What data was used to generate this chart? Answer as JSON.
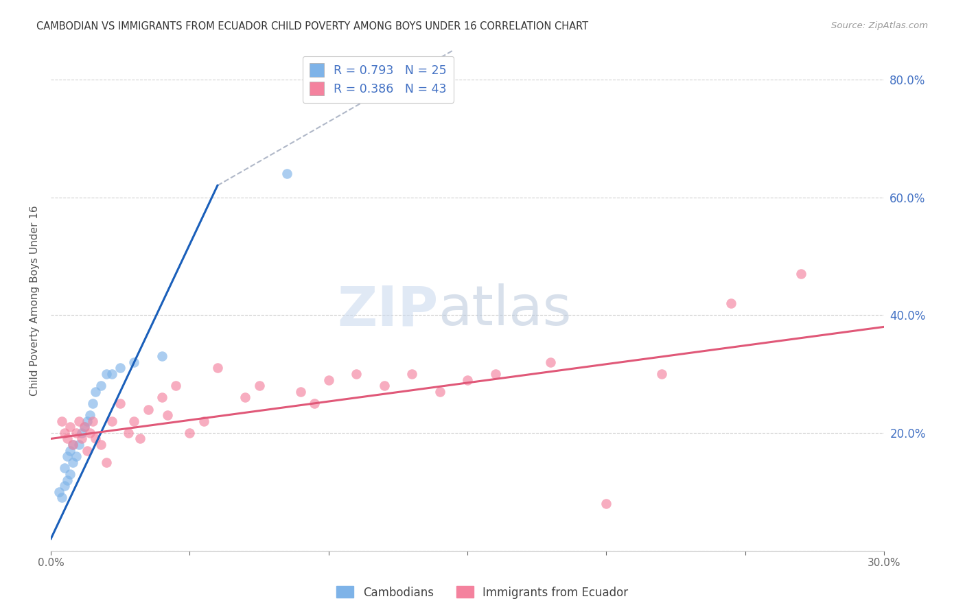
{
  "title": "CAMBODIAN VS IMMIGRANTS FROM ECUADOR CHILD POVERTY AMONG BOYS UNDER 16 CORRELATION CHART",
  "source": "Source: ZipAtlas.com",
  "ylabel": "Child Poverty Among Boys Under 16",
  "xlim": [
    0.0,
    0.3
  ],
  "ylim": [
    0.0,
    0.85
  ],
  "background_color": "#ffffff",
  "grid_color": "#d0d0d0",
  "legend1_R": "0.793",
  "legend1_N": "25",
  "legend2_R": "0.386",
  "legend2_N": "43",
  "color_cambodian": "#7eb3e8",
  "color_ecuador": "#f4829e",
  "color_blue_line": "#1a5fba",
  "color_pink_line": "#e05878",
  "color_dashed": "#b0b8c8",
  "right_axis_color": "#4472c4",
  "cam_x": [
    0.003,
    0.004,
    0.005,
    0.005,
    0.006,
    0.006,
    0.007,
    0.007,
    0.008,
    0.008,
    0.009,
    0.01,
    0.011,
    0.012,
    0.013,
    0.014,
    0.015,
    0.016,
    0.018,
    0.02,
    0.022,
    0.025,
    0.03,
    0.04,
    0.085
  ],
  "cam_y": [
    0.1,
    0.09,
    0.11,
    0.14,
    0.12,
    0.16,
    0.13,
    0.17,
    0.15,
    0.18,
    0.16,
    0.18,
    0.2,
    0.21,
    0.22,
    0.23,
    0.25,
    0.27,
    0.28,
    0.3,
    0.3,
    0.31,
    0.32,
    0.33,
    0.64
  ],
  "ecu_x": [
    0.004,
    0.005,
    0.006,
    0.007,
    0.008,
    0.009,
    0.01,
    0.011,
    0.012,
    0.013,
    0.014,
    0.015,
    0.016,
    0.018,
    0.02,
    0.022,
    0.025,
    0.028,
    0.03,
    0.032,
    0.035,
    0.04,
    0.042,
    0.045,
    0.05,
    0.055,
    0.06,
    0.07,
    0.075,
    0.09,
    0.095,
    0.1,
    0.11,
    0.12,
    0.13,
    0.14,
    0.15,
    0.16,
    0.18,
    0.2,
    0.22,
    0.245,
    0.27
  ],
  "ecu_y": [
    0.22,
    0.2,
    0.19,
    0.21,
    0.18,
    0.2,
    0.22,
    0.19,
    0.21,
    0.17,
    0.2,
    0.22,
    0.19,
    0.18,
    0.15,
    0.22,
    0.25,
    0.2,
    0.22,
    0.19,
    0.24,
    0.26,
    0.23,
    0.28,
    0.2,
    0.22,
    0.31,
    0.26,
    0.28,
    0.27,
    0.25,
    0.29,
    0.3,
    0.28,
    0.3,
    0.27,
    0.29,
    0.3,
    0.32,
    0.08,
    0.3,
    0.42,
    0.47
  ],
  "blue_line_x": [
    0.0,
    0.06
  ],
  "blue_line_y": [
    0.02,
    0.62
  ],
  "dashed_line_x": [
    0.06,
    0.145
  ],
  "dashed_line_y": [
    0.62,
    0.85
  ],
  "pink_line_x": [
    0.0,
    0.3
  ],
  "pink_line_y": [
    0.19,
    0.38
  ]
}
